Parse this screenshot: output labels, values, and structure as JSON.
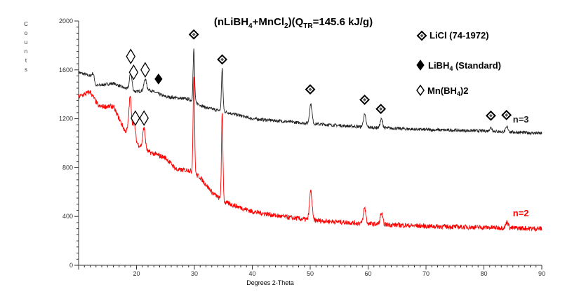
{
  "chart_data": {
    "type": "line",
    "title": "(nLiBH4+MnCl2)(QTR=145.6 kJ/g)",
    "title_parts": {
      "a": "(nLiBH",
      "s1": "4",
      "b": "+MnCl",
      "s2": "2",
      "c": ")(Q",
      "s3": "TR",
      "d": "=145.6 kJ/g)"
    },
    "xlabel": "Degrees 2-Theta",
    "ylabel": "Counts",
    "xlim": [
      10,
      90
    ],
    "ylim": [
      0,
      2000
    ],
    "xticks": [
      20,
      30,
      40,
      50,
      60,
      70,
      80,
      90
    ],
    "yticks": [
      0,
      400,
      800,
      1200,
      1600,
      2000
    ],
    "series": [
      {
        "name": "n=3",
        "color": "#222222",
        "baseline": [
          [
            10,
            1580
          ],
          [
            12,
            1550
          ],
          [
            13,
            1470
          ],
          [
            16,
            1490
          ],
          [
            18,
            1450
          ],
          [
            20,
            1420
          ],
          [
            22,
            1440
          ],
          [
            25,
            1380
          ],
          [
            29,
            1360
          ],
          [
            32,
            1290
          ],
          [
            35,
            1260
          ],
          [
            40,
            1200
          ],
          [
            50,
            1160
          ],
          [
            60,
            1130
          ],
          [
            70,
            1110
          ],
          [
            80,
            1100
          ],
          [
            90,
            1080
          ]
        ],
        "peaks": [
          [
            12.5,
            60
          ],
          [
            19,
            140
          ],
          [
            21.5,
            90
          ],
          [
            29.9,
            430
          ],
          [
            34.8,
            350
          ],
          [
            50.1,
            160
          ],
          [
            59.4,
            100
          ],
          [
            62.3,
            70
          ],
          [
            81.2,
            30
          ],
          [
            84,
            40
          ]
        ]
      },
      {
        "name": "n=2",
        "color": "#ff0000",
        "baseline": [
          [
            10,
            1380
          ],
          [
            12,
            1420
          ],
          [
            13.5,
            1300
          ],
          [
            16,
            1300
          ],
          [
            18,
            1100
          ],
          [
            19,
            1100
          ],
          [
            20,
            1000
          ],
          [
            22,
            930
          ],
          [
            25,
            880
          ],
          [
            27,
            780
          ],
          [
            29,
            780
          ],
          [
            31,
            720
          ],
          [
            33,
            600
          ],
          [
            35,
            520
          ],
          [
            40,
            440
          ],
          [
            45,
            400
          ],
          [
            50,
            370
          ],
          [
            60,
            340
          ],
          [
            70,
            320
          ],
          [
            80,
            310
          ],
          [
            90,
            300
          ]
        ],
        "peaks": [
          [
            18.9,
            280
          ],
          [
            19.6,
            130
          ],
          [
            21.3,
            170
          ],
          [
            29.9,
            800
          ],
          [
            34.8,
            720
          ],
          [
            50.1,
            240
          ],
          [
            59.4,
            130
          ],
          [
            62.3,
            90
          ],
          [
            84,
            50
          ]
        ]
      }
    ],
    "legend": [
      {
        "marker": "licl",
        "label": "LiCl (74-1972)"
      },
      {
        "marker": "libh4",
        "label": "LiBH",
        "sub": "4",
        "rest": " (Standard)"
      },
      {
        "marker": "mnbh",
        "label": "Mn(BH",
        "sub": "4",
        "rest": ")2"
      }
    ],
    "markers": {
      "licl": [
        [
          29.9,
          1890
        ],
        [
          34.8,
          1685
        ],
        [
          50,
          1440
        ],
        [
          59.4,
          1355
        ],
        [
          62.2,
          1280
        ],
        [
          81.2,
          1225
        ],
        [
          83.9,
          1230
        ]
      ],
      "mnbh": [
        [
          19,
          1710
        ],
        [
          19.5,
          1580
        ],
        [
          21.5,
          1600
        ],
        [
          19.8,
          1205
        ],
        [
          21.3,
          1205
        ]
      ],
      "libh4": [
        [
          23.8,
          1525
        ]
      ]
    },
    "annotations": [
      {
        "text": "n=3",
        "x": 85,
        "y": 1170,
        "color": "#222222"
      },
      {
        "text": "n=2",
        "x": 85,
        "y": 400,
        "color": "#ff0000"
      }
    ]
  }
}
